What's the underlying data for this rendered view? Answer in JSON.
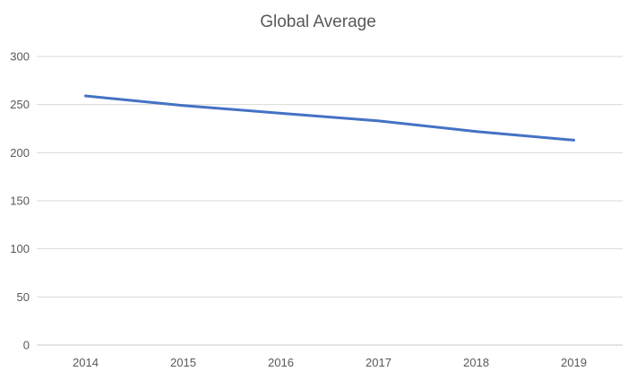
{
  "chart_data": {
    "type": "line",
    "title": "Global Average",
    "categories": [
      "2014",
      "2015",
      "2016",
      "2017",
      "2018",
      "2019"
    ],
    "series": [
      {
        "name": "Global Average",
        "values": [
          259,
          249,
          241,
          233,
          222,
          213
        ],
        "color": "#4472C4"
      }
    ],
    "xlabel": "",
    "ylabel": "",
    "ylim": [
      0,
      300
    ],
    "yticks": [
      0,
      50,
      100,
      150,
      200,
      250,
      300
    ],
    "grid": true,
    "legend_position": "none"
  },
  "style": {
    "title_color": "#595959",
    "tick_label_color": "#595959",
    "gridline_color": "#D9D9D9",
    "axis_line_color": "#C9C9C9",
    "background_color": "#FFFFFF",
    "line_width": 3
  }
}
